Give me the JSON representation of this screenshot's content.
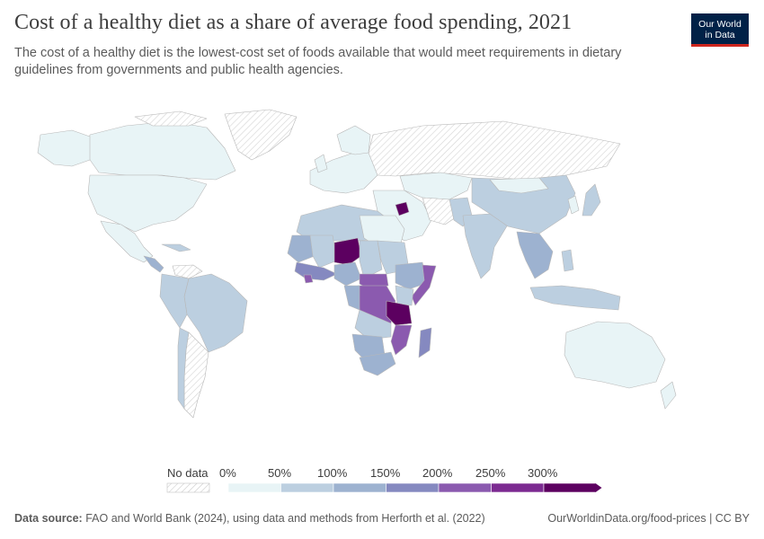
{
  "header": {
    "title": "Cost of a healthy diet as a share of average food spending, 2021",
    "subtitle": "The cost of a healthy diet is the lowest-cost set of foods available that would meet requirements in dietary guidelines from governments and public health agencies.",
    "logo_line1": "Our World",
    "logo_line2": "in Data"
  },
  "legend": {
    "no_data_label": "No data",
    "ticks": [
      "0%",
      "50%",
      "100%",
      "150%",
      "200%",
      "250%",
      "300%"
    ],
    "colors": [
      "#e8f4f6",
      "#bccfe0",
      "#9db2d0",
      "#8589c0",
      "#8b5aaf",
      "#7c2a91",
      "#5c0060"
    ]
  },
  "map": {
    "colors": {
      "no_data_stroke": "#cfcfcf",
      "land_low": "#e8f4f6",
      "land_mid": "#bccfe0",
      "land_midhigh": "#9db2d0",
      "land_high": "#8589c0",
      "land_vhigh": "#8b5aaf",
      "land_extreme": "#5c0060"
    }
  },
  "footer": {
    "source_label": "Data source:",
    "source_text": "FAO and World Bank (2024), using data and methods from Herforth et al. (2022)",
    "link": "OurWorldinData.org/food-prices | CC BY"
  }
}
